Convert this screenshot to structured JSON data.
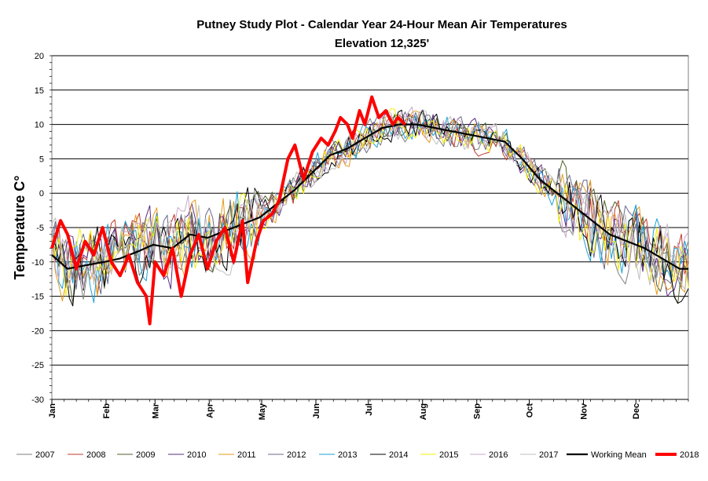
{
  "chart_data": {
    "type": "line",
    "title": "Putney Study Plot - Calendar Year 24-Hour Mean Air Temperatures",
    "subtitle": "Elevation 12,325'",
    "ylabel": "Temperature C°",
    "xlabel": "",
    "ylim": [
      -30,
      20
    ],
    "yticks": [
      20,
      15,
      10,
      5,
      0,
      -5,
      -10,
      -15,
      -20,
      -25,
      -30
    ],
    "xlim": [
      1,
      365
    ],
    "grid": "horizontal",
    "legend_position": "bottom",
    "months": [
      {
        "label": "Jan",
        "day": 1
      },
      {
        "label": "Feb",
        "day": 32
      },
      {
        "label": "Mar",
        "day": 60
      },
      {
        "label": "Apr",
        "day": 91
      },
      {
        "label": "May",
        "day": 121
      },
      {
        "label": "Jun",
        "day": 152
      },
      {
        "label": "Jul",
        "day": 182
      },
      {
        "label": "Aug",
        "day": 213
      },
      {
        "label": "Sep",
        "day": 244
      },
      {
        "label": "Oct",
        "day": 274
      },
      {
        "label": "Nov",
        "day": 305
      },
      {
        "label": "Dec",
        "day": 335
      }
    ],
    "series": [
      {
        "name": "2007",
        "color": "#7f7f7f",
        "width": 1
      },
      {
        "name": "2008",
        "color": "#c0392b",
        "width": 1
      },
      {
        "name": "2009",
        "color": "#4f6228",
        "width": 1
      },
      {
        "name": "2010",
        "color": "#5b2c83",
        "width": 1
      },
      {
        "name": "2011",
        "color": "#e69a1e",
        "width": 1
      },
      {
        "name": "2012",
        "color": "#6a6a8a",
        "width": 1
      },
      {
        "name": "2013",
        "color": "#1ea1d6",
        "width": 1
      },
      {
        "name": "2014",
        "color": "#000000",
        "width": 1
      },
      {
        "name": "2015",
        "color": "#f4f00a",
        "width": 1
      },
      {
        "name": "2016",
        "color": "#c8a8c8",
        "width": 1
      },
      {
        "name": "2017",
        "color": "#bfbfbf",
        "width": 1
      },
      {
        "name": "Working Mean",
        "color": "#000000",
        "width": 2.2,
        "points": [
          [
            1,
            -9
          ],
          [
            10,
            -11
          ],
          [
            20,
            -10.5
          ],
          [
            31,
            -10
          ],
          [
            40,
            -9.5
          ],
          [
            50,
            -8.5
          ],
          [
            59,
            -7.5
          ],
          [
            70,
            -8
          ],
          [
            80,
            -6
          ],
          [
            90,
            -6.5
          ],
          [
            100,
            -5.5
          ],
          [
            110,
            -4.5
          ],
          [
            120,
            -3.5
          ],
          [
            130,
            -1.5
          ],
          [
            140,
            0.5
          ],
          [
            150,
            3
          ],
          [
            160,
            5.5
          ],
          [
            170,
            6.5
          ],
          [
            180,
            8
          ],
          [
            190,
            9.5
          ],
          [
            200,
            10
          ],
          [
            210,
            10
          ],
          [
            220,
            9.5
          ],
          [
            230,
            9
          ],
          [
            240,
            8.5
          ],
          [
            250,
            8
          ],
          [
            260,
            7.5
          ],
          [
            270,
            5
          ],
          [
            280,
            2
          ],
          [
            290,
            0
          ],
          [
            300,
            -2
          ],
          [
            310,
            -4
          ],
          [
            320,
            -6
          ],
          [
            330,
            -7
          ],
          [
            340,
            -8
          ],
          [
            350,
            -9.5
          ],
          [
            360,
            -11
          ],
          [
            365,
            -11
          ]
        ]
      },
      {
        "name": "2018",
        "color": "#ff0000",
        "width": 4,
        "points": [
          [
            1,
            -8
          ],
          [
            6,
            -4
          ],
          [
            10,
            -6
          ],
          [
            15,
            -11
          ],
          [
            20,
            -7
          ],
          [
            25,
            -9
          ],
          [
            30,
            -5
          ],
          [
            35,
            -10
          ],
          [
            40,
            -12
          ],
          [
            45,
            -9
          ],
          [
            50,
            -13
          ],
          [
            55,
            -15
          ],
          [
            57,
            -19
          ],
          [
            60,
            -10
          ],
          [
            65,
            -12
          ],
          [
            70,
            -8
          ],
          [
            75,
            -15
          ],
          [
            80,
            -9
          ],
          [
            85,
            -6
          ],
          [
            90,
            -11
          ],
          [
            95,
            -7
          ],
          [
            100,
            -5
          ],
          [
            105,
            -10
          ],
          [
            110,
            -4
          ],
          [
            113,
            -13
          ],
          [
            118,
            -7
          ],
          [
            122,
            -4
          ],
          [
            127,
            -3
          ],
          [
            131,
            -1
          ],
          [
            136,
            5
          ],
          [
            140,
            7
          ],
          [
            145,
            2
          ],
          [
            150,
            6
          ],
          [
            155,
            8
          ],
          [
            159,
            7
          ],
          [
            163,
            9
          ],
          [
            166,
            11
          ],
          [
            170,
            10
          ],
          [
            173,
            8
          ],
          [
            177,
            12
          ],
          [
            180,
            10
          ],
          [
            184,
            14
          ],
          [
            188,
            11
          ],
          [
            192,
            12
          ],
          [
            196,
            10
          ],
          [
            199,
            11
          ],
          [
            203,
            10
          ]
        ]
      }
    ],
    "legend": [
      "2007",
      "2008",
      "2009",
      "2010",
      "2011",
      "2012",
      "2013",
      "2014",
      "2015",
      "2016",
      "2017",
      "Working Mean",
      "2018"
    ]
  }
}
